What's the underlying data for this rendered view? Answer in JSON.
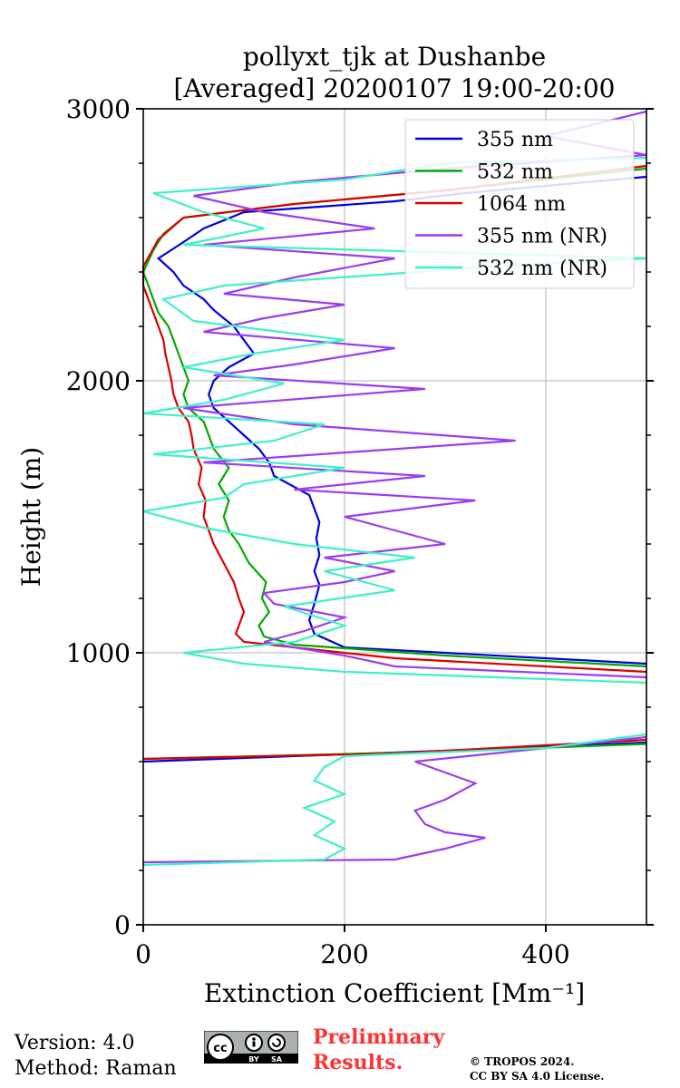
{
  "chart_data": {
    "type": "line",
    "title_line1": "pollyxt_tjk at Dushanbe",
    "title_line2": "[Averaged] 20200107 19:00-20:00",
    "xlabel": "Extinction Coefficient [Mm⁻¹]",
    "ylabel": "Height (m)",
    "xlim": [
      0,
      500
    ],
    "ylim": [
      0,
      3000
    ],
    "xticks": [
      0,
      200,
      400
    ],
    "yticks": [
      0,
      1000,
      2000,
      3000
    ],
    "xtick_labels": [
      "0",
      "200",
      "400"
    ],
    "ytick_labels": [
      "0",
      "1000",
      "2000",
      "3000"
    ],
    "grid": true,
    "legend_position": "top-right",
    "series": [
      {
        "name": "355 nm",
        "color": "#0000e0",
        "points": [
          [
            0,
            600
          ],
          [
            300,
            640
          ],
          [
            500,
            670
          ]
        ],
        "segments": [
          [
            [
              500,
              960
            ],
            [
              300,
              1000
            ],
            [
              200,
              1020
            ],
            [
              170,
              1070
            ],
            [
              165,
              1120
            ],
            [
              170,
              1180
            ],
            [
              175,
              1250
            ],
            [
              170,
              1300
            ],
            [
              175,
              1360
            ],
            [
              172,
              1420
            ],
            [
              175,
              1480
            ],
            [
              170,
              1530
            ],
            [
              165,
              1580
            ],
            [
              130,
              1650
            ],
            [
              125,
              1700
            ],
            [
              115,
              1750
            ],
            [
              100,
              1800
            ],
            [
              85,
              1850
            ],
            [
              70,
              1900
            ],
            [
              65,
              1950
            ],
            [
              70,
              2000
            ],
            [
              85,
              2050
            ],
            [
              110,
              2100
            ],
            [
              100,
              2150
            ],
            [
              90,
              2200
            ],
            [
              70,
              2260
            ],
            [
              60,
              2300
            ],
            [
              40,
              2350
            ],
            [
              30,
              2400
            ],
            [
              15,
              2450
            ],
            [
              40,
              2510
            ],
            [
              60,
              2560
            ],
            [
              100,
              2620
            ],
            [
              250,
              2660
            ],
            [
              320,
              2690
            ],
            [
              500,
              2750
            ]
          ]
        ]
      },
      {
        "name": "532 nm",
        "color": "#00aa00",
        "points": [
          [
            0,
            610
          ],
          [
            280,
            635
          ],
          [
            500,
            665
          ]
        ],
        "segments": [
          [
            [
              500,
              950
            ],
            [
              300,
              990
            ],
            [
              150,
              1030
            ],
            [
              120,
              1060
            ],
            [
              115,
              1100
            ],
            [
              125,
              1150
            ],
            [
              118,
              1200
            ],
            [
              122,
              1260
            ],
            [
              105,
              1330
            ],
            [
              95,
              1400
            ],
            [
              85,
              1450
            ],
            [
              80,
              1500
            ],
            [
              85,
              1560
            ],
            [
              75,
              1620
            ],
            [
              85,
              1680
            ],
            [
              70,
              1750
            ],
            [
              65,
              1800
            ],
            [
              60,
              1850
            ],
            [
              45,
              1900
            ],
            [
              40,
              1950
            ],
            [
              45,
              2000
            ],
            [
              40,
              2050
            ],
            [
              35,
              2100
            ],
            [
              30,
              2150
            ],
            [
              25,
              2200
            ],
            [
              15,
              2250
            ],
            [
              10,
              2300
            ],
            [
              5,
              2350
            ],
            [
              0,
              2400
            ],
            [
              10,
              2480
            ],
            [
              20,
              2540
            ],
            [
              40,
              2600
            ],
            [
              150,
              2650
            ],
            [
              300,
              2700
            ],
            [
              500,
              2780
            ]
          ]
        ]
      },
      {
        "name": "1064 nm",
        "color": "#dd0000",
        "points": [
          [
            0,
            610
          ],
          [
            250,
            630
          ],
          [
            500,
            680
          ]
        ],
        "segments": [
          [
            [
              500,
              930
            ],
            [
              250,
              980
            ],
            [
              100,
              1040
            ],
            [
              92,
              1070
            ],
            [
              95,
              1100
            ],
            [
              100,
              1150
            ],
            [
              95,
              1200
            ],
            [
              90,
              1260
            ],
            [
              80,
              1330
            ],
            [
              70,
              1400
            ],
            [
              65,
              1450
            ],
            [
              60,
              1500
            ],
            [
              62,
              1560
            ],
            [
              55,
              1620
            ],
            [
              58,
              1680
            ],
            [
              50,
              1750
            ],
            [
              48,
              1800
            ],
            [
              45,
              1850
            ],
            [
              35,
              1900
            ],
            [
              30,
              1950
            ],
            [
              28,
              2000
            ],
            [
              25,
              2050
            ],
            [
              22,
              2100
            ],
            [
              20,
              2150
            ],
            [
              15,
              2200
            ],
            [
              10,
              2250
            ],
            [
              5,
              2300
            ],
            [
              0,
              2350
            ],
            [
              0,
              2420
            ],
            [
              15,
              2520
            ],
            [
              40,
              2600
            ],
            [
              150,
              2650
            ],
            [
              300,
              2700
            ],
            [
              500,
              2790
            ]
          ]
        ]
      },
      {
        "name": "355 nm (NR)",
        "color": "#9b3cf0",
        "points": [
          [
            0,
            230
          ],
          [
            250,
            240
          ],
          [
            300,
            280
          ],
          [
            340,
            320
          ],
          [
            300,
            340
          ],
          [
            280,
            370
          ],
          [
            270,
            420
          ],
          [
            300,
            460
          ],
          [
            330,
            520
          ],
          [
            300,
            560
          ],
          [
            270,
            600
          ],
          [
            400,
            650
          ],
          [
            500,
            690
          ]
        ],
        "segments": [
          [
            [
              500,
              910
            ],
            [
              250,
              950
            ],
            [
              200,
              990
            ],
            [
              150,
              1020
            ],
            [
              120,
              1040
            ],
            [
              160,
              1080
            ],
            [
              200,
              1130
            ],
            [
              130,
              1180
            ],
            [
              120,
              1220
            ],
            [
              200,
              1260
            ],
            [
              250,
              1300
            ],
            [
              180,
              1350
            ],
            [
              300,
              1400
            ],
            [
              250,
              1450
            ],
            [
              200,
              1500
            ],
            [
              330,
              1560
            ],
            [
              150,
              1600
            ],
            [
              280,
              1650
            ],
            [
              60,
              1700
            ],
            [
              370,
              1780
            ],
            [
              150,
              1840
            ],
            [
              40,
              1900
            ],
            [
              280,
              1970
            ],
            [
              70,
              2020
            ],
            [
              150,
              2060
            ],
            [
              250,
              2120
            ],
            [
              60,
              2180
            ],
            [
              120,
              2230
            ],
            [
              200,
              2280
            ],
            [
              80,
              2320
            ],
            [
              150,
              2380
            ],
            [
              250,
              2450
            ],
            [
              60,
              2500
            ],
            [
              230,
              2560
            ],
            [
              120,
              2620
            ],
            [
              50,
              2680
            ],
            [
              150,
              2730
            ],
            [
              300,
              2780
            ],
            [
              500,
              2830
            ],
            [
              400,
              2900
            ],
            [
              500,
              2990
            ]
          ]
        ]
      },
      {
        "name": "532 nm (NR)",
        "color": "#40f0c8",
        "points": [
          [
            0,
            220
          ],
          [
            180,
            240
          ],
          [
            200,
            280
          ],
          [
            170,
            330
          ],
          [
            190,
            380
          ],
          [
            160,
            430
          ],
          [
            200,
            480
          ],
          [
            170,
            530
          ],
          [
            180,
            580
          ],
          [
            200,
            620
          ],
          [
            400,
            650
          ],
          [
            500,
            700
          ]
        ],
        "segments": [
          [
            [
              500,
              890
            ],
            [
              350,
              910
            ],
            [
              200,
              930
            ],
            [
              100,
              960
            ],
            [
              40,
              1000
            ],
            [
              150,
              1040
            ],
            [
              200,
              1100
            ],
            [
              140,
              1170
            ],
            [
              250,
              1230
            ],
            [
              180,
              1300
            ],
            [
              270,
              1350
            ],
            [
              150,
              1400
            ],
            [
              60,
              1460
            ],
            [
              0,
              1520
            ],
            [
              80,
              1570
            ],
            [
              100,
              1620
            ],
            [
              200,
              1680
            ],
            [
              10,
              1730
            ],
            [
              130,
              1780
            ],
            [
              180,
              1840
            ],
            [
              0,
              1880
            ],
            [
              80,
              1930
            ],
            [
              140,
              1990
            ],
            [
              40,
              2050
            ],
            [
              110,
              2100
            ],
            [
              200,
              2150
            ],
            [
              50,
              2220
            ],
            [
              20,
              2300
            ],
            [
              80,
              2350
            ],
            [
              350,
              2420
            ],
            [
              500,
              2450
            ],
            [
              40,
              2500
            ],
            [
              120,
              2560
            ],
            [
              60,
              2620
            ],
            [
              10,
              2690
            ],
            [
              200,
              2740
            ],
            [
              300,
              2800
            ],
            [
              500,
              2820
            ]
          ]
        ]
      }
    ]
  },
  "footer": {
    "version": "Version: 4.0",
    "method": "Method: Raman",
    "preliminary_line1": "Preliminary",
    "preliminary_line2": "Results.",
    "copyright_line1": "© TROPOS 2024.",
    "copyright_line2": "CC BY SA 4.0 License.",
    "license_badge": {
      "icon": "cc-by-sa-icon",
      "labels": [
        "BY",
        "SA"
      ]
    }
  }
}
